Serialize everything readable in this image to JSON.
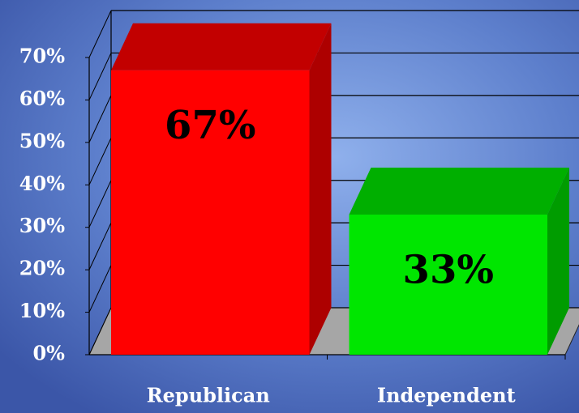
{
  "chart_data": {
    "type": "bar3d",
    "categories": [
      "Republican",
      "Independent"
    ],
    "values": [
      67,
      33
    ],
    "value_labels": [
      "67%",
      "33%"
    ],
    "colors": [
      "#ff0000",
      "#00e600"
    ],
    "ylim": [
      0,
      70
    ],
    "yticks": [
      {
        "value": 0,
        "label": "0%"
      },
      {
        "value": 10,
        "label": "10%"
      },
      {
        "value": 20,
        "label": "20%"
      },
      {
        "value": 30,
        "label": "30%"
      },
      {
        "value": 40,
        "label": "40%"
      },
      {
        "value": 50,
        "label": "50%"
      },
      {
        "value": 60,
        "label": "60%"
      },
      {
        "value": 70,
        "label": "70%"
      }
    ],
    "grid": true
  }
}
